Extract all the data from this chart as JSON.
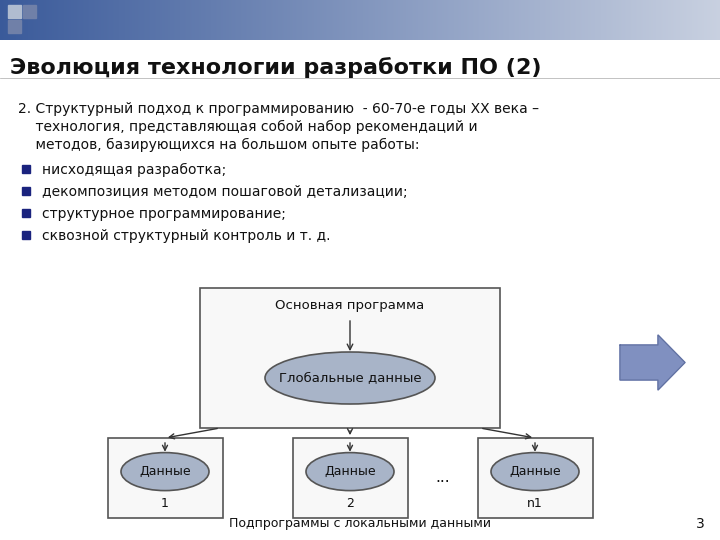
{
  "title": "Эволюция технологии разработки ПО (2)",
  "bg_color": "#ffffff",
  "header_color_left": "#3a5a9a",
  "header_color_right": "#c8d0e0",
  "sq1_color": "#b0bcd0",
  "sq2_color": "#7080a8",
  "body_text_line1": "2. Структурный подход к программированию  - 60-70-е годы XX века –",
  "body_text_line2": "    технология, представляющая собой набор рекомендаций и",
  "body_text_line3": "    методов, базирующихся на большом опыте работы:",
  "bullets": [
    "нисходящая разработка;",
    "декомпозиция методом пошаговой детализации;",
    "структурное программирование;",
    "сквозной структурный контроль и т. д."
  ],
  "main_box_label": "Основная программа",
  "main_ellipse_label": "Глобальные данные",
  "sub_ellipse_label": "Данные",
  "sub_nums": [
    "1",
    "2",
    "n1"
  ],
  "dots_label": "...",
  "footer_text": "Подпрограммы с локальными данными",
  "page_number": "3",
  "box_edge_color": "#555555",
  "box_face_color": "#f8f8f8",
  "ellipse_fill": "#a8b4c8",
  "ellipse_edge": "#555555",
  "line_color": "#333333",
  "text_color": "#111111",
  "bullet_color": "#1a237e",
  "nav_arrow_fill": "#8090c0",
  "nav_arrow_edge": "#6070a0"
}
